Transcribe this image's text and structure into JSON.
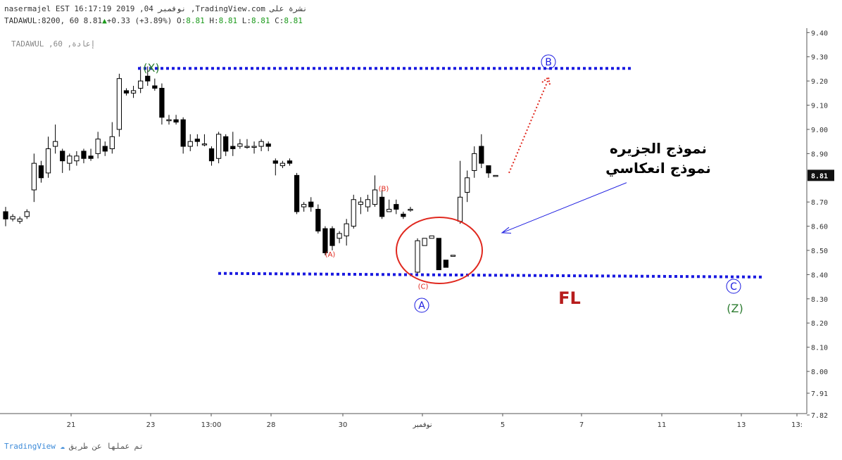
{
  "header": {
    "line1": "nasermajel EST 16:17:19 2019 ,04 نوفمبر ,TradingView.com نشرة على",
    "line2_prefix": "TADAWUL:8200, 60 8.81",
    "line2_change": "+0.33 (+3.89%)",
    "o_label": "O:",
    "o_value": "8.81",
    "h_label": "H:",
    "h_value": "8.81",
    "l_label": "L:",
    "l_value": "8.81",
    "c_label": "C:",
    "c_value": "8.81"
  },
  "watermark": "TADAWUL ,60 ,إعادة",
  "footer": {
    "brand": "TradingView",
    "credit": "تم عملها عن طريق"
  },
  "colors": {
    "blue_dots": "#1a1ae0",
    "red": "#e0281e",
    "green": "#2e7d32",
    "dark_red": "#b71c1c",
    "axis": "#555555"
  },
  "chart_data": {
    "type": "candlestick",
    "price_label": "8.81",
    "y_ticks": [
      "9.40",
      "9.30",
      "9.20",
      "9.10",
      "9.00",
      "8.90",
      "8.81",
      "8.70",
      "8.60",
      "8.50",
      "8.40",
      "8.30",
      "8.20",
      "8.10",
      "8.00",
      "7.91",
      "7.82"
    ],
    "x_ticks": [
      "21",
      "23",
      "13:00",
      "28",
      "30",
      "نوفمبر",
      "5",
      "7",
      "11",
      "13",
      "13:"
    ],
    "ylim": [
      7.82,
      9.45
    ],
    "candles": [
      [
        8.66,
        8.63,
        8.68,
        8.6
      ],
      [
        8.63,
        8.64,
        8.65,
        8.62
      ],
      [
        8.62,
        8.63,
        8.64,
        8.61
      ],
      [
        8.64,
        8.66,
        8.67,
        8.63
      ],
      [
        8.75,
        8.86,
        8.9,
        8.7
      ],
      [
        8.85,
        8.8,
        8.87,
        8.78
      ],
      [
        8.82,
        8.92,
        8.97,
        8.8
      ],
      [
        8.93,
        8.95,
        9.02,
        8.9
      ],
      [
        8.91,
        8.87,
        8.92,
        8.82
      ],
      [
        8.86,
        8.89,
        8.9,
        8.83
      ],
      [
        8.87,
        8.89,
        8.91,
        8.85
      ],
      [
        8.91,
        8.88,
        8.92,
        8.86
      ],
      [
        8.89,
        8.88,
        8.92,
        8.87
      ],
      [
        8.9,
        8.96,
        8.99,
        8.88
      ],
      [
        8.93,
        8.91,
        8.95,
        8.89
      ],
      [
        8.92,
        8.97,
        9.03,
        8.9
      ],
      [
        9.0,
        9.21,
        9.23,
        8.97
      ],
      [
        9.16,
        9.15,
        9.17,
        9.14
      ],
      [
        9.15,
        9.16,
        9.18,
        9.13
      ],
      [
        9.17,
        9.2,
        9.26,
        9.15
      ],
      [
        9.22,
        9.2,
        9.26,
        9.18
      ],
      [
        9.18,
        9.17,
        9.21,
        9.16
      ],
      [
        9.17,
        9.05,
        9.19,
        9.02
      ],
      [
        9.04,
        9.04,
        9.06,
        9.02
      ],
      [
        9.04,
        9.03,
        9.06,
        9.02
      ],
      [
        9.04,
        8.93,
        9.05,
        8.9
      ],
      [
        8.93,
        8.95,
        8.98,
        8.91
      ],
      [
        8.96,
        8.95,
        8.98,
        8.93
      ],
      [
        8.94,
        8.94,
        8.98,
        8.93
      ],
      [
        8.92,
        8.87,
        8.93,
        8.85
      ],
      [
        8.88,
        8.98,
        8.99,
        8.86
      ],
      [
        8.97,
        8.91,
        8.98,
        8.89
      ],
      [
        8.93,
        8.92,
        8.99,
        8.89
      ],
      [
        8.93,
        8.94,
        8.96,
        8.92
      ],
      [
        8.93,
        8.93,
        8.96,
        8.92
      ],
      [
        8.93,
        8.93,
        8.95,
        8.9
      ],
      [
        8.93,
        8.95,
        8.96,
        8.91
      ],
      [
        8.94,
        8.93,
        8.95,
        8.91
      ],
      [
        8.87,
        8.86,
        8.88,
        8.81
      ],
      [
        8.85,
        8.86,
        8.87,
        8.84
      ],
      [
        8.87,
        8.86,
        8.88,
        8.85
      ],
      [
        8.81,
        8.66,
        8.82,
        8.65
      ],
      [
        8.68,
        8.69,
        8.7,
        8.66
      ],
      [
        8.7,
        8.68,
        8.72,
        8.66
      ],
      [
        8.67,
        8.58,
        8.69,
        8.57
      ],
      [
        8.59,
        8.49,
        8.6,
        8.48
      ],
      [
        8.59,
        8.52,
        8.6,
        8.5
      ],
      [
        8.55,
        8.57,
        8.58,
        8.53
      ],
      [
        8.56,
        8.61,
        8.63,
        8.52
      ],
      [
        8.6,
        8.71,
        8.73,
        8.59
      ],
      [
        8.69,
        8.7,
        8.72,
        8.65
      ],
      [
        8.68,
        8.71,
        8.73,
        8.66
      ],
      [
        8.69,
        8.75,
        8.81,
        8.68
      ],
      [
        8.72,
        8.64,
        8.75,
        8.63
      ],
      [
        8.66,
        8.67,
        8.71,
        8.66
      ],
      [
        8.69,
        8.67,
        8.71,
        8.65
      ],
      [
        8.65,
        8.64,
        8.66,
        8.63
      ],
      [
        8.67,
        8.67,
        8.68,
        8.66
      ],
      [
        8.41,
        8.54,
        8.55,
        8.4
      ],
      [
        8.52,
        8.55,
        8.55,
        8.52
      ],
      [
        8.55,
        8.56,
        8.56,
        8.55
      ],
      [
        8.55,
        8.42,
        8.55,
        8.42
      ],
      [
        8.46,
        8.43,
        8.46,
        8.43
      ],
      [
        8.48,
        8.48,
        8.48,
        8.48
      ],
      [
        8.62,
        8.72,
        8.87,
        8.61
      ],
      [
        8.74,
        8.8,
        8.83,
        8.7
      ],
      [
        8.83,
        8.9,
        8.93,
        8.8
      ],
      [
        8.93,
        8.86,
        8.98,
        8.84
      ],
      [
        8.85,
        8.82,
        8.85,
        8.8
      ],
      [
        8.81,
        8.81,
        8.81,
        8.81
      ]
    ],
    "annotations": {
      "x_label": "(X)",
      "a_small": "(A)",
      "b_small": "(B)",
      "c_small": "(C)",
      "big_a": "A",
      "big_b": "B",
      "big_c": "C",
      "z_label": "(Z)",
      "fl": "FL",
      "arabic_1": "نموذج الجزيره",
      "arabic_2": "نموذج انعكاسي"
    }
  }
}
